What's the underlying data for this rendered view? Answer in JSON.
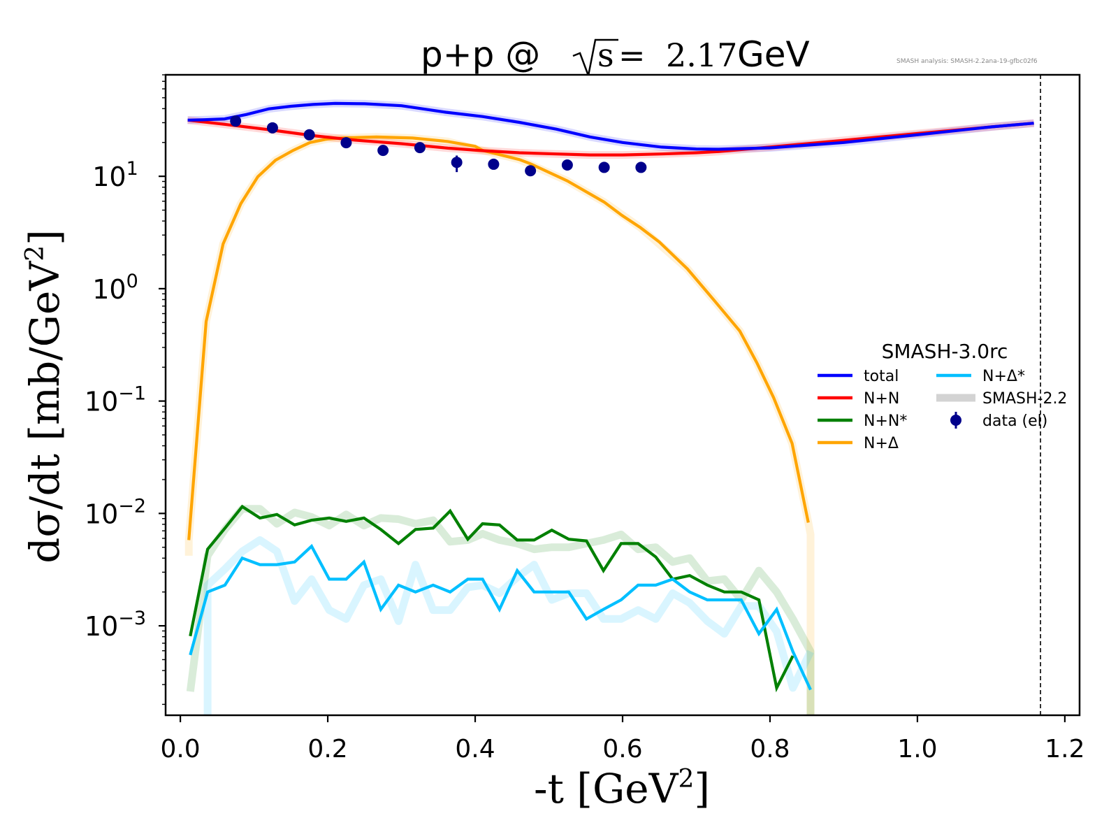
{
  "chart_data": {
    "type": "line",
    "title": "p+p @ √s = 2.17 GeV",
    "title_parts": {
      "prefix": "p+p @ ",
      "sqrt_arg": "s",
      "eq": " = ",
      "value": "2.17",
      "unit": " GeV"
    },
    "watermark": "SMASH analysis: SMASH-2.2ana-19-gfbc02f6",
    "xlabel": "-t [GeV²]",
    "xlabel_parts": {
      "main": "-t [GeV",
      "sup": "2",
      "tail": "]"
    },
    "ylabel": "dσ/dt [mb/GeV²]",
    "ylabel_parts": {
      "main": "dσ/dt [mb/GeV",
      "sup": "2",
      "tail": "]"
    },
    "xlim": [
      -0.02,
      1.22
    ],
    "ylim": [
      0.00016,
      80
    ],
    "yscale": "log",
    "xticks": [
      0.0,
      0.2,
      0.4,
      0.6,
      0.8,
      1.0,
      1.2
    ],
    "xtick_labels": [
      "0.0",
      "0.2",
      "0.4",
      "0.6",
      "0.8",
      "1.0",
      "1.2"
    ],
    "yticks": [
      0.001,
      0.01,
      0.1,
      1.0,
      10.0
    ],
    "ytick_labels": [
      {
        "base": "10",
        "exp": "−3"
      },
      {
        "base": "10",
        "exp": "−2"
      },
      {
        "base": "10",
        "exp": "−1"
      },
      {
        "base": "10",
        "exp": "0"
      },
      {
        "base": "10",
        "exp": "1"
      }
    ],
    "vline": {
      "x": 1.167,
      "style": "dashed",
      "color": "#000000"
    },
    "grid": false,
    "legend": {
      "title": "SMASH-3.0rc",
      "placement": "center-right",
      "columns": 2,
      "entries": [
        {
          "label": "total",
          "color": "#0000ff",
          "kind": "line"
        },
        {
          "label": "N+N",
          "color": "#ff0000",
          "kind": "line"
        },
        {
          "label": "N+N*",
          "color": "#008000",
          "kind": "line"
        },
        {
          "label": "N+Δ",
          "color": "#ffa500",
          "kind": "line"
        },
        {
          "label": "N+Δ*",
          "color": "#00bfff",
          "kind": "line"
        },
        {
          "label": "SMASH-2.2",
          "color": "#d3d3d3",
          "kind": "band"
        },
        {
          "label": "data (el)",
          "color": "#00008b",
          "kind": "marker"
        }
      ]
    },
    "series": [
      {
        "name": "total",
        "version": "SMASH-3.0rc",
        "color": "#0000ff",
        "x": [
          0.01,
          0.03,
          0.06,
          0.09,
          0.12,
          0.15,
          0.18,
          0.21,
          0.25,
          0.3,
          0.36,
          0.41,
          0.46,
          0.51,
          0.556,
          0.6,
          0.653,
          0.7,
          0.73,
          0.8,
          0.9,
          1.0,
          1.1,
          1.158
        ],
        "y": [
          31.6,
          31.8,
          32.4,
          35.5,
          39.8,
          42.0,
          43.6,
          44.5,
          44.2,
          42.5,
          37.2,
          34.0,
          30.2,
          26.3,
          22.4,
          20.0,
          18.2,
          17.5,
          17.4,
          17.9,
          20.0,
          23.4,
          27.5,
          29.7
        ]
      },
      {
        "name": "N+N",
        "version": "SMASH-3.0rc",
        "color": "#ff0000",
        "x": [
          0.01,
          0.06,
          0.12,
          0.18,
          0.24,
          0.3,
          0.363,
          0.41,
          0.46,
          0.51,
          0.556,
          0.6,
          0.653,
          0.7,
          0.73,
          0.8,
          0.9,
          1.0,
          1.1,
          1.158
        ],
        "y": [
          31.6,
          29.0,
          26.0,
          23.0,
          20.9,
          19.5,
          17.8,
          16.9,
          16.2,
          15.8,
          15.5,
          15.5,
          15.8,
          16.2,
          16.6,
          18.2,
          20.9,
          24.0,
          27.5,
          29.7
        ]
      },
      {
        "name": "N+Δ",
        "version": "SMASH-3.0rc",
        "color": "#ffa500",
        "x": [
          0.0115,
          0.035,
          0.058,
          0.082,
          0.105,
          0.129,
          0.153,
          0.176,
          0.2,
          0.224,
          0.266,
          0.315,
          0.363,
          0.4,
          0.41,
          0.46,
          0.474,
          0.525,
          0.575,
          0.599,
          0.624,
          0.65,
          0.688,
          0.724,
          0.759,
          0.782,
          0.805,
          0.83,
          0.852
        ],
        "y": [
          0.0058,
          0.51,
          2.5,
          5.7,
          9.9,
          13.9,
          17.0,
          20.0,
          21.5,
          22.0,
          22.4,
          21.9,
          20.4,
          18.5,
          17.0,
          14.1,
          13.0,
          9.1,
          5.9,
          4.5,
          3.5,
          2.6,
          1.5,
          0.79,
          0.42,
          0.22,
          0.107,
          0.042,
          0.0083
        ]
      },
      {
        "name": "N+N*",
        "version": "SMASH-3.0rc",
        "color": "#008000",
        "x": [
          0.0135,
          0.037,
          0.0605,
          0.084,
          0.108,
          0.131,
          0.155,
          0.178,
          0.202,
          0.225,
          0.249,
          0.272,
          0.296,
          0.319,
          0.343,
          0.366,
          0.39,
          0.41,
          0.433,
          0.457,
          0.48,
          0.504,
          0.527,
          0.551,
          0.574,
          0.598,
          0.621,
          0.645,
          0.668,
          0.691,
          0.715,
          0.738,
          0.761,
          0.785,
          0.809,
          0.831
        ],
        "y": [
          0.00081,
          0.0048,
          0.0074,
          0.0115,
          0.0091,
          0.0098,
          0.0079,
          0.0087,
          0.0091,
          0.0085,
          0.0091,
          0.0072,
          0.0054,
          0.0072,
          0.0074,
          0.0105,
          0.0059,
          0.0081,
          0.0079,
          0.0058,
          0.0058,
          0.0071,
          0.0059,
          0.0057,
          0.0031,
          0.0054,
          0.0054,
          0.0041,
          0.0026,
          0.0028,
          0.0023,
          0.002,
          0.002,
          0.0017,
          0.00028,
          0.00054
        ]
      },
      {
        "name": "N+Δ*",
        "version": "SMASH-3.0rc",
        "color": "#00bfff",
        "x": [
          0.0135,
          0.037,
          0.0605,
          0.084,
          0.108,
          0.131,
          0.155,
          0.178,
          0.202,
          0.225,
          0.249,
          0.272,
          0.296,
          0.319,
          0.343,
          0.366,
          0.39,
          0.41,
          0.433,
          0.457,
          0.48,
          0.504,
          0.527,
          0.551,
          0.574,
          0.598,
          0.621,
          0.645,
          0.668,
          0.691,
          0.715,
          0.738,
          0.761,
          0.785,
          0.809,
          0.831,
          0.855
        ],
        "y": [
          0.00055,
          0.002,
          0.0023,
          0.004,
          0.0035,
          0.0035,
          0.0037,
          0.0051,
          0.0026,
          0.0026,
          0.0037,
          0.0014,
          0.0023,
          0.002,
          0.0023,
          0.002,
          0.0026,
          0.0026,
          0.0014,
          0.0031,
          0.002,
          0.002,
          0.002,
          0.00115,
          0.0014,
          0.0017,
          0.0023,
          0.0023,
          0.0026,
          0.002,
          0.0017,
          0.0017,
          0.0017,
          0.00085,
          0.0014,
          0.00059,
          0.00027
        ]
      }
    ],
    "reference_series": [
      {
        "name": "total",
        "version": "SMASH-2.2",
        "color": "#0000ff",
        "x": [
          0.01,
          0.03,
          0.06,
          0.09,
          0.12,
          0.15,
          0.18,
          0.21,
          0.25,
          0.3,
          0.36,
          0.41,
          0.46,
          0.51,
          0.556,
          0.6,
          0.653,
          0.7,
          0.73,
          0.8,
          0.9,
          1.0,
          1.1,
          1.158
        ],
        "y": [
          31.6,
          31.8,
          32.4,
          35.5,
          39.8,
          42.0,
          43.6,
          44.5,
          44.2,
          42.5,
          37.2,
          34.0,
          30.2,
          26.3,
          22.4,
          20.0,
          18.2,
          17.5,
          17.4,
          17.9,
          20.0,
          23.4,
          27.5,
          29.7
        ]
      },
      {
        "name": "N+N",
        "version": "SMASH-2.2",
        "color": "#ff0000",
        "x": [
          0.01,
          0.06,
          0.12,
          0.18,
          0.24,
          0.3,
          0.363,
          0.41,
          0.46,
          0.51,
          0.556,
          0.6,
          0.653,
          0.7,
          0.73,
          0.8,
          0.9,
          1.0,
          1.1,
          1.158
        ],
        "y": [
          31.6,
          29.0,
          26.0,
          23.0,
          20.9,
          19.5,
          17.8,
          16.9,
          16.2,
          15.8,
          15.5,
          15.5,
          15.8,
          16.2,
          16.6,
          18.2,
          20.9,
          24.0,
          27.5,
          29.7
        ]
      },
      {
        "name": "N+Δ",
        "version": "SMASH-2.2",
        "color": "#ffa500",
        "x": [
          0.0115,
          0.0115,
          0.035,
          0.058,
          0.082,
          0.105,
          0.129,
          0.153,
          0.176,
          0.2,
          0.224,
          0.266,
          0.315,
          0.363,
          0.41,
          0.46,
          0.525,
          0.575,
          0.624,
          0.688,
          0.724,
          0.759,
          0.782,
          0.805,
          0.83,
          0.852,
          0.855,
          0.855
        ],
        "y": [
          0.0042,
          0.0058,
          0.51,
          2.5,
          5.7,
          9.9,
          13.9,
          17.0,
          20.0,
          21.5,
          22.0,
          22.4,
          21.9,
          20.4,
          17.0,
          14.1,
          9.1,
          5.9,
          3.5,
          1.5,
          0.79,
          0.42,
          0.22,
          0.107,
          0.042,
          0.0083,
          0.0065,
          0.00016
        ]
      },
      {
        "name": "N+N*",
        "version": "SMASH-2.2",
        "color": "#008000",
        "x": [
          0.0135,
          0.037,
          0.0605,
          0.084,
          0.108,
          0.131,
          0.155,
          0.178,
          0.202,
          0.225,
          0.249,
          0.272,
          0.296,
          0.319,
          0.343,
          0.366,
          0.39,
          0.41,
          0.433,
          0.457,
          0.48,
          0.504,
          0.527,
          0.551,
          0.574,
          0.598,
          0.621,
          0.645,
          0.668,
          0.691,
          0.715,
          0.738,
          0.761,
          0.785,
          0.809,
          0.831,
          0.855,
          0.855
        ],
        "y": [
          0.00026,
          0.0042,
          0.0072,
          0.011,
          0.011,
          0.0081,
          0.0102,
          0.0093,
          0.0078,
          0.0098,
          0.0078,
          0.0091,
          0.0089,
          0.0081,
          0.0087,
          0.0056,
          0.0058,
          0.0066,
          0.0058,
          0.0054,
          0.0048,
          0.005,
          0.005,
          0.0054,
          0.0058,
          0.0065,
          0.0048,
          0.005,
          0.0037,
          0.004,
          0.0025,
          0.0026,
          0.0017,
          0.0031,
          0.002,
          0.00115,
          0.00059,
          0.00016
        ]
      },
      {
        "name": "N+Δ*",
        "version": "SMASH-2.2",
        "color": "#00bfff",
        "x": [
          0.037,
          0.037,
          0.0605,
          0.084,
          0.108,
          0.131,
          0.155,
          0.178,
          0.202,
          0.225,
          0.249,
          0.272,
          0.296,
          0.319,
          0.343,
          0.366,
          0.39,
          0.41,
          0.433,
          0.457,
          0.48,
          0.504,
          0.527,
          0.551,
          0.574,
          0.598,
          0.621,
          0.645,
          0.668,
          0.691,
          0.715,
          0.738,
          0.761,
          0.785,
          0.809,
          0.831,
          0.855
        ],
        "y": [
          0.00016,
          0.0023,
          0.0032,
          0.0046,
          0.0058,
          0.0046,
          0.00166,
          0.0026,
          0.00138,
          0.00115,
          0.0023,
          0.0026,
          0.0011,
          0.0035,
          0.00138,
          0.00138,
          0.0022,
          0.0023,
          0.00195,
          0.0027,
          0.0035,
          0.0017,
          0.00195,
          0.00195,
          0.00115,
          0.00115,
          0.00138,
          0.00115,
          0.00195,
          0.0016,
          0.0011,
          0.00085,
          0.0015,
          0.0015,
          0.00089,
          0.00028,
          0.00059
        ]
      }
    ],
    "data_points": {
      "name": "data (el)",
      "color": "#00008b",
      "x": [
        0.075,
        0.125,
        0.175,
        0.225,
        0.275,
        0.325,
        0.375,
        0.425,
        0.475,
        0.525,
        0.575,
        0.625
      ],
      "y": [
        31.0,
        27.0,
        23.4,
        19.9,
        17.0,
        18.0,
        13.3,
        12.8,
        11.2,
        12.6,
        12.0,
        12.0
      ],
      "yerr_low": [
        0,
        0,
        0,
        0,
        0,
        0,
        2.4,
        0,
        0,
        0,
        0,
        0
      ],
      "yerr_high": [
        0,
        0,
        0,
        0,
        0,
        0,
        2.0,
        0,
        0,
        0,
        0,
        0
      ]
    }
  }
}
